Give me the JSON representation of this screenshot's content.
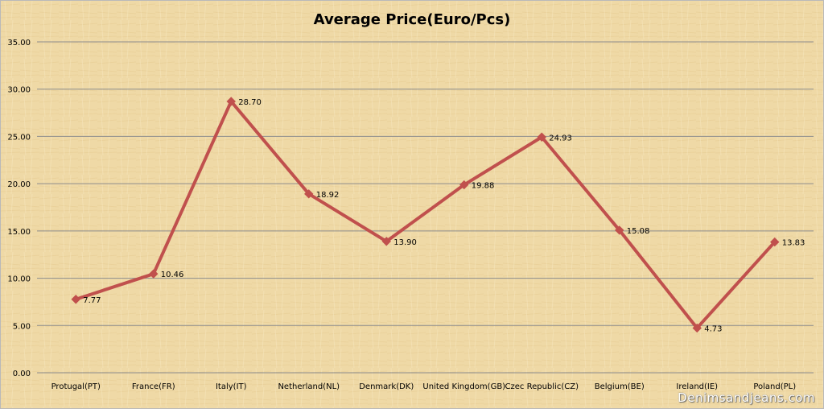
{
  "chart_data": {
    "type": "line",
    "title": "Average Price(Euro/Pcs)",
    "xlabel": "",
    "ylabel": "",
    "categories": [
      "Protugal(PT)",
      "France(FR)",
      "Italy(IT)",
      "Netherland(NL)",
      "Denmark(DK)",
      "United Kingdom(GB)",
      "Czec Republic(CZ)",
      "Belgium(BE)",
      "Ireland(IE)",
      "Poland(PL)"
    ],
    "series": [
      {
        "values": [
          7.77,
          10.46,
          28.7,
          18.92,
          13.9,
          19.88,
          24.93,
          15.08,
          4.73,
          13.83
        ],
        "data_labels": [
          "7.77",
          "10.46",
          "28.70",
          "18.92",
          "13.90",
          "19.88",
          "24.93",
          "15.08",
          "4.73",
          "13.83"
        ],
        "color": "#c0504d"
      }
    ],
    "ylim": [
      0,
      35
    ],
    "yticks": [
      "0.00",
      "5.00",
      "10.00",
      "15.00",
      "20.00",
      "25.00",
      "30.00",
      "35.00"
    ],
    "grid": true,
    "legend": "none",
    "marker": "diamond"
  },
  "watermark": "Denimsandjeans.com",
  "colors": {
    "background": "#efd9a6",
    "gridline": "#8c8c8c",
    "line": "#c0504d",
    "text": "#000000"
  }
}
